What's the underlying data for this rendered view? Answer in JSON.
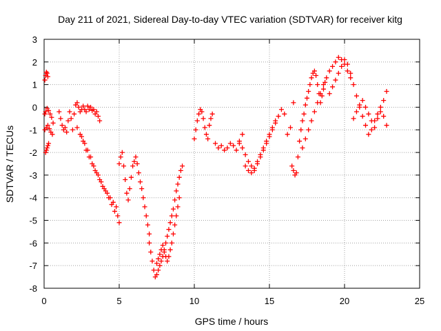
{
  "chart_data": {
    "type": "scatter",
    "title": "Day 211 of 2021, Sidereal Day-to-day VTEC variation (SDTVAR) for receiver kitg",
    "xlabel": "GPS time / hours",
    "ylabel": "SDTVAR / TECUs",
    "xlim": [
      0,
      25
    ],
    "ylim": [
      -8,
      3
    ],
    "xticks": [
      "0",
      "5",
      "10",
      "15",
      "20",
      "25"
    ],
    "yticks": [
      "-8",
      "-7",
      "-6",
      "-5",
      "-4",
      "-3",
      "-2",
      "-1",
      "0",
      "1",
      "2",
      "3"
    ],
    "grid": true,
    "marker": "+",
    "color": "#ff0000",
    "series": [
      {
        "name": "SDTVAR",
        "x": [
          0.05,
          0.1,
          0.15,
          0.2,
          0.25,
          0.05,
          0.1,
          0.2,
          0.3,
          0.4,
          0.5,
          0.6,
          0.05,
          0.15,
          0.25,
          0.35,
          0.45,
          0.55,
          0.1,
          0.15,
          0.2,
          0.25,
          0.3,
          1.0,
          1.1,
          1.2,
          1.3,
          1.4,
          1.5,
          1.6,
          1.7,
          1.8,
          1.9,
          2.0,
          2.1,
          2.2,
          2.3,
          2.4,
          2.5,
          2.6,
          2.7,
          2.8,
          2.9,
          3.0,
          3.1,
          3.2,
          3.3,
          3.4,
          3.5,
          3.6,
          3.7,
          2.2,
          2.4,
          2.6,
          2.8,
          3.0,
          3.2,
          3.4,
          3.6,
          3.8,
          4.0,
          4.2,
          4.4,
          4.6,
          4.8,
          2.5,
          2.7,
          2.9,
          3.1,
          3.3,
          3.5,
          3.7,
          3.9,
          4.1,
          4.3,
          4.5,
          4.7,
          4.9,
          5.0,
          5.0,
          5.1,
          5.2,
          5.3,
          5.4,
          5.5,
          5.6,
          5.7,
          5.8,
          5.9,
          6.0,
          6.1,
          6.2,
          6.3,
          6.4,
          6.5,
          6.6,
          6.7,
          6.8,
          6.9,
          7.0,
          7.0,
          7.1,
          7.2,
          7.3,
          7.4,
          7.5,
          7.6,
          7.7,
          7.8,
          7.9,
          8.0,
          8.1,
          8.2,
          8.3,
          8.4,
          8.5,
          8.6,
          8.7,
          8.8,
          8.9,
          9.0,
          9.1,
          9.2,
          7.5,
          7.6,
          7.7,
          7.8,
          7.9,
          8.0,
          8.1,
          8.2,
          8.3,
          8.4,
          8.5,
          8.6,
          8.7,
          8.8,
          8.9,
          9.0,
          10.0,
          10.1,
          10.2,
          10.3,
          10.4,
          10.5,
          10.6,
          10.7,
          10.8,
          10.9,
          11.0,
          11.1,
          11.2,
          11.4,
          11.6,
          11.8,
          12.0,
          12.2,
          12.4,
          12.6,
          12.8,
          13.0,
          13.2,
          13.0,
          13.2,
          13.4,
          13.6,
          13.8,
          14.0,
          14.2,
          14.4,
          14.6,
          14.8,
          15.0,
          15.2,
          15.4,
          15.6,
          15.8,
          16.0,
          16.2,
          16.4,
          16.6,
          13.4,
          13.6,
          13.8,
          14.0,
          14.2,
          14.4,
          14.6,
          14.8,
          15.0,
          15.2,
          15.4,
          16.5,
          16.6,
          16.7,
          16.8,
          16.9,
          17.0,
          17.1,
          17.2,
          17.3,
          17.4,
          17.5,
          17.6,
          17.7,
          17.8,
          17.9,
          18.0,
          18.1,
          18.2,
          18.3,
          18.4,
          18.5,
          18.6,
          18.7,
          17.2,
          17.4,
          17.6,
          17.8,
          18.0,
          18.2,
          18.4,
          18.6,
          18.8,
          19.0,
          19.2,
          19.4,
          19.6,
          19.8,
          20.0,
          20.2,
          20.4,
          19.0,
          19.2,
          19.4,
          19.6,
          19.8,
          20.0,
          20.2,
          20.4,
          20.6,
          20.8,
          21.0,
          21.2,
          21.4,
          21.6,
          21.8,
          22.0,
          22.2,
          22.4,
          22.6,
          22.8,
          20.6,
          20.8,
          21.0,
          21.2,
          21.4,
          21.6,
          21.8,
          22.0,
          22.2,
          22.4,
          22.6,
          22.8
        ],
        "y": [
          1.2,
          1.4,
          1.55,
          1.5,
          1.35,
          -0.3,
          -0.2,
          -0.05,
          -0.15,
          -0.3,
          -0.45,
          -0.7,
          -1.0,
          -0.9,
          -0.8,
          -0.95,
          -1.1,
          -1.2,
          -2.0,
          -1.9,
          -1.8,
          -1.7,
          -1.6,
          -0.2,
          -0.5,
          -0.8,
          -1.0,
          -0.9,
          -1.1,
          -0.6,
          -0.2,
          -0.5,
          -1.0,
          -0.3,
          0.1,
          0.2,
          0.0,
          -0.2,
          -0.1,
          0.05,
          -0.1,
          -0.2,
          0.05,
          -0.1,
          0.0,
          -0.15,
          -0.1,
          -0.3,
          -0.2,
          -0.4,
          -0.6,
          -0.9,
          -1.2,
          -1.5,
          -1.9,
          -2.2,
          -2.5,
          -2.8,
          -3.0,
          -3.3,
          -3.6,
          -3.8,
          -4.0,
          -4.2,
          -4.4,
          -1.3,
          -1.6,
          -1.9,
          -2.2,
          -2.6,
          -2.9,
          -3.2,
          -3.5,
          -3.7,
          -4.0,
          -4.3,
          -4.6,
          -4.8,
          -5.1,
          -2.5,
          -2.2,
          -2.0,
          -2.6,
          -3.2,
          -3.8,
          -4.1,
          -3.6,
          -3.1,
          -2.6,
          -2.4,
          -2.2,
          -2.5,
          -2.9,
          -3.3,
          -3.6,
          -4.0,
          -4.4,
          -4.8,
          -5.2,
          -5.6,
          -6.0,
          -6.4,
          -6.8,
          -7.2,
          -7.5,
          -7.4,
          -7.2,
          -7.0,
          -6.8,
          -6.6,
          -6.3,
          -6.0,
          -5.7,
          -5.4,
          -5.1,
          -4.8,
          -4.5,
          -4.1,
          -3.7,
          -3.4,
          -3.1,
          -2.8,
          -2.6,
          -6.9,
          -6.7,
          -6.5,
          -6.3,
          -6.1,
          -6.4,
          -6.6,
          -6.8,
          -6.6,
          -6.3,
          -6.0,
          -5.6,
          -5.2,
          -4.8,
          -4.4,
          -4.0,
          -1.4,
          -1.0,
          -0.6,
          -0.3,
          -0.1,
          -0.2,
          -0.5,
          -0.9,
          -1.2,
          -1.4,
          -0.8,
          -0.5,
          -0.3,
          -1.6,
          -1.8,
          -1.7,
          -1.9,
          -1.8,
          -1.6,
          -1.7,
          -1.9,
          -1.5,
          -1.2,
          -1.6,
          -1.8,
          -2.1,
          -2.4,
          -2.6,
          -2.8,
          -2.5,
          -2.2,
          -1.9,
          -1.6,
          -1.3,
          -1.0,
          -0.7,
          -0.4,
          -0.1,
          -0.3,
          -1.2,
          -0.9,
          0.2,
          -2.6,
          -2.8,
          -2.9,
          -2.7,
          -2.4,
          -2.1,
          -1.8,
          -1.5,
          -1.2,
          -0.9,
          -0.6,
          -2.6,
          -2.8,
          -3.0,
          -2.9,
          -2.2,
          -1.5,
          -1.0,
          -0.6,
          -0.3,
          0.1,
          0.4,
          0.7,
          1.0,
          1.3,
          1.5,
          1.6,
          1.4,
          1.0,
          0.6,
          0.2,
          0.5,
          0.8,
          1.1,
          -1.8,
          -1.4,
          -1.0,
          -0.6,
          -0.2,
          0.2,
          0.6,
          1.0,
          1.3,
          1.6,
          1.8,
          2.0,
          2.2,
          2.1,
          1.9,
          1.6,
          1.3,
          0.6,
          0.9,
          1.2,
          1.5,
          1.8,
          2.1,
          1.9,
          1.5,
          1.0,
          0.5,
          0.0,
          -0.4,
          -0.8,
          -1.2,
          -1.0,
          -0.6,
          -0.3,
          0.0,
          -0.4,
          -0.8,
          -0.5,
          -0.2,
          0.1,
          0.3,
          0.0,
          -0.3,
          -0.6,
          -0.9,
          -0.5,
          -0.2,
          0.3,
          0.7
        ]
      }
    ]
  }
}
